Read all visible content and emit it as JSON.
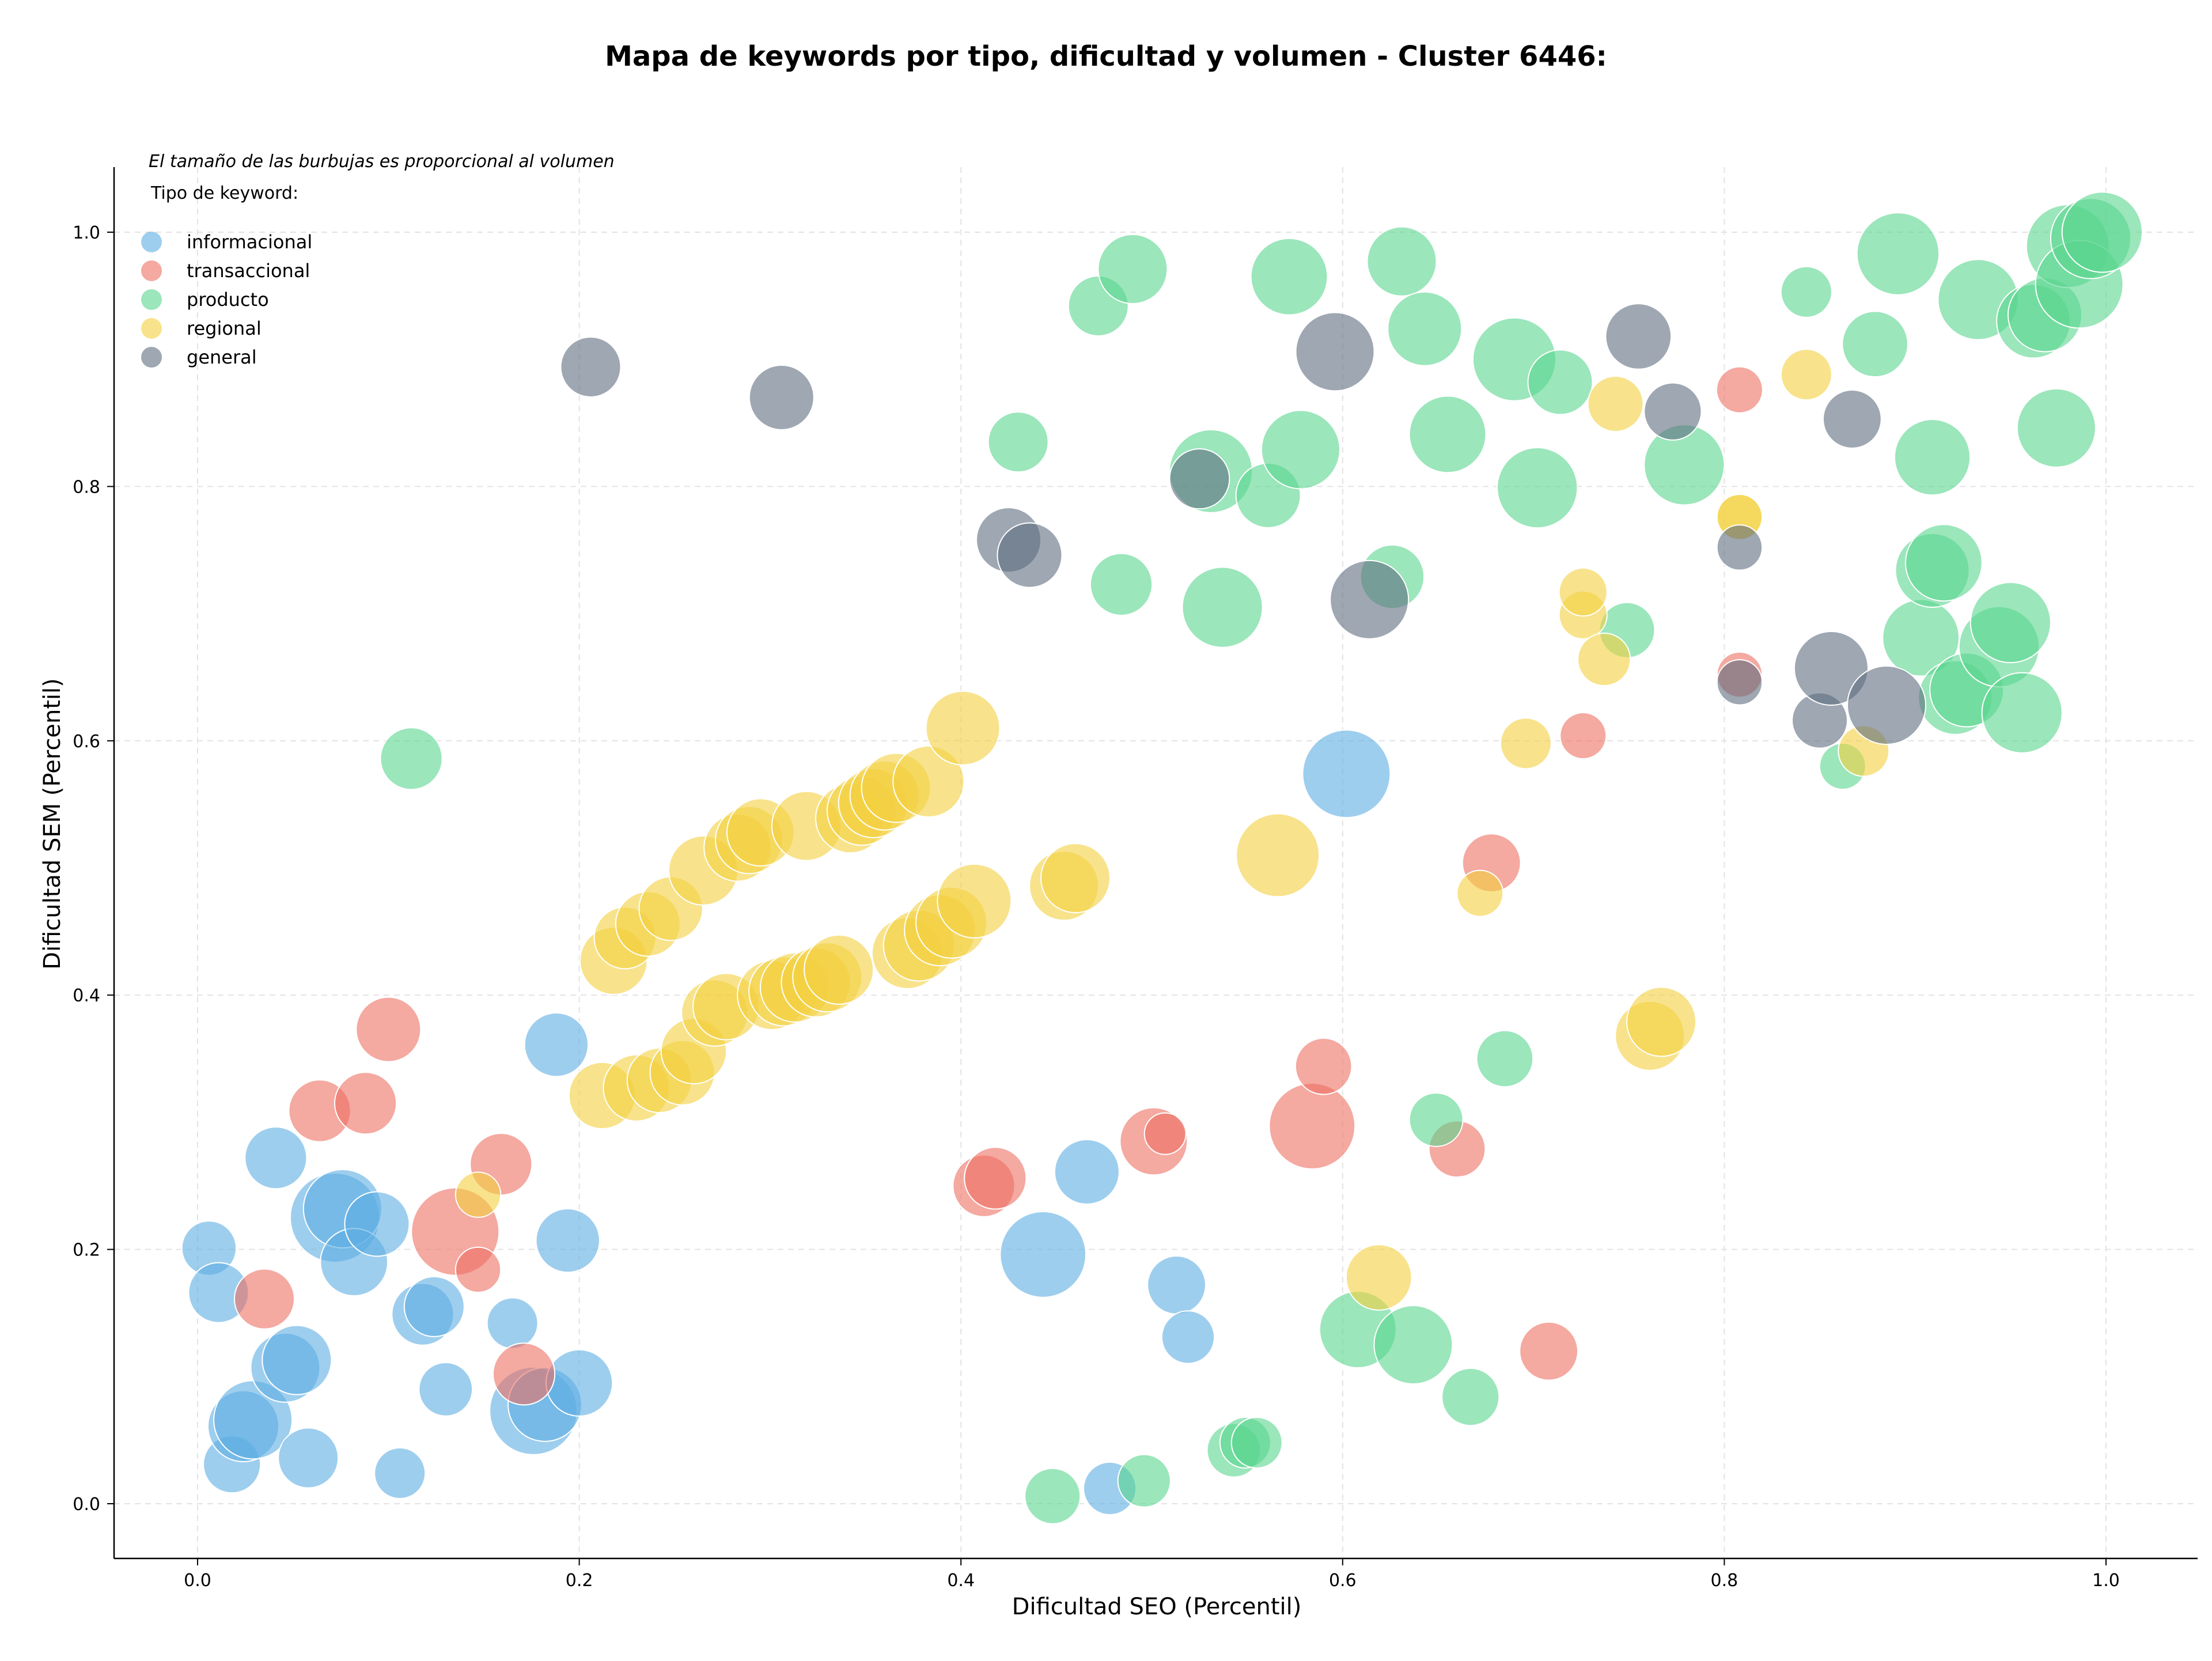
{
  "chart_data": {
    "type": "scatter",
    "title": "Mapa de keywords por tipo, dificultad y volumen - Cluster 6446:",
    "xlabel": "Dificultad SEO (Percentil)",
    "ylabel": "Dificultad SEM (Percentil)",
    "xlim": [
      -0.043,
      1.05
    ],
    "ylim": [
      -0.043,
      1.05
    ],
    "x_ticks": [
      "0.0",
      "0.2",
      "0.4",
      "0.6",
      "0.8",
      "1.0"
    ],
    "y_ticks": [
      "0.0",
      "0.2",
      "0.4",
      "0.6",
      "0.8",
      "1.0"
    ],
    "grid": true,
    "legend_placement": "top-left",
    "note": "El tamaño de las burbujas es proporcional al volumen",
    "legend_title": "Tipo de keyword:",
    "series": [
      {
        "name": "informacional",
        "color": "#5dade2",
        "points": [
          {
            "x": 0.006,
            "y": 0.201,
            "s": 0.34
          },
          {
            "x": 0.011,
            "y": 0.166,
            "s": 0.4
          },
          {
            "x": 0.018,
            "y": 0.031,
            "s": 0.37
          },
          {
            "x": 0.024,
            "y": 0.061,
            "s": 0.52
          },
          {
            "x": 0.029,
            "y": 0.066,
            "s": 0.6
          },
          {
            "x": 0.041,
            "y": 0.272,
            "s": 0.42
          },
          {
            "x": 0.046,
            "y": 0.107,
            "s": 0.5
          },
          {
            "x": 0.052,
            "y": 0.113,
            "s": 0.5
          },
          {
            "x": 0.058,
            "y": 0.036,
            "s": 0.4
          },
          {
            "x": 0.072,
            "y": 0.225,
            "s": 0.72
          },
          {
            "x": 0.076,
            "y": 0.232,
            "s": 0.6
          },
          {
            "x": 0.082,
            "y": 0.19,
            "s": 0.48
          },
          {
            "x": 0.094,
            "y": 0.22,
            "s": 0.45
          },
          {
            "x": 0.106,
            "y": 0.024,
            "s": 0.3
          },
          {
            "x": 0.118,
            "y": 0.149,
            "s": 0.42
          },
          {
            "x": 0.124,
            "y": 0.155,
            "s": 0.4
          },
          {
            "x": 0.13,
            "y": 0.09,
            "s": 0.33
          },
          {
            "x": 0.165,
            "y": 0.142,
            "s": 0.3
          },
          {
            "x": 0.176,
            "y": 0.073,
            "s": 0.7
          },
          {
            "x": 0.182,
            "y": 0.078,
            "s": 0.55
          },
          {
            "x": 0.188,
            "y": 0.361,
            "s": 0.44
          },
          {
            "x": 0.194,
            "y": 0.207,
            "s": 0.44
          },
          {
            "x": 0.2,
            "y": 0.095,
            "s": 0.47
          },
          {
            "x": 0.443,
            "y": 0.196,
            "s": 0.68
          },
          {
            "x": 0.466,
            "y": 0.261,
            "s": 0.45
          },
          {
            "x": 0.478,
            "y": 0.012,
            "s": 0.32
          },
          {
            "x": 0.513,
            "y": 0.172,
            "s": 0.38
          },
          {
            "x": 0.519,
            "y": 0.131,
            "s": 0.32
          },
          {
            "x": 0.602,
            "y": 0.574,
            "s": 0.7
          }
        ]
      },
      {
        "name": "transaccional",
        "color": "#ec7063",
        "points": [
          {
            "x": 0.035,
            "y": 0.161,
            "s": 0.4
          },
          {
            "x": 0.064,
            "y": 0.309,
            "s": 0.42
          },
          {
            "x": 0.088,
            "y": 0.315,
            "s": 0.42
          },
          {
            "x": 0.1,
            "y": 0.373,
            "s": 0.45
          },
          {
            "x": 0.135,
            "y": 0.214,
            "s": 0.7
          },
          {
            "x": 0.147,
            "y": 0.184,
            "s": 0.24
          },
          {
            "x": 0.159,
            "y": 0.267,
            "s": 0.42
          },
          {
            "x": 0.171,
            "y": 0.102,
            "s": 0.42
          },
          {
            "x": 0.412,
            "y": 0.25,
            "s": 0.42
          },
          {
            "x": 0.418,
            "y": 0.256,
            "s": 0.42
          },
          {
            "x": 0.501,
            "y": 0.285,
            "s": 0.48
          },
          {
            "x": 0.507,
            "y": 0.291,
            "s": 0.2
          },
          {
            "x": 0.584,
            "y": 0.297,
            "s": 0.68
          },
          {
            "x": 0.59,
            "y": 0.344,
            "s": 0.36
          },
          {
            "x": 0.66,
            "y": 0.279,
            "s": 0.36
          },
          {
            "x": 0.678,
            "y": 0.504,
            "s": 0.38
          },
          {
            "x": 0.708,
            "y": 0.12,
            "s": 0.38
          },
          {
            "x": 0.726,
            "y": 0.604,
            "s": 0.25
          },
          {
            "x": 0.808,
            "y": 0.652,
            "s": 0.24
          },
          {
            "x": 0.808,
            "y": 0.876,
            "s": 0.25
          }
        ]
      },
      {
        "name": "producto",
        "color": "#58d68d",
        "points": [
          {
            "x": 0.112,
            "y": 0.586,
            "s": 0.42
          },
          {
            "x": 0.43,
            "y": 0.835,
            "s": 0.4
          },
          {
            "x": 0.448,
            "y": 0.006,
            "s": 0.35
          },
          {
            "x": 0.472,
            "y": 0.942,
            "s": 0.4
          },
          {
            "x": 0.484,
            "y": 0.723,
            "s": 0.42
          },
          {
            "x": 0.49,
            "y": 0.971,
            "s": 0.5
          },
          {
            "x": 0.496,
            "y": 0.018,
            "s": 0.32
          },
          {
            "x": 0.531,
            "y": 0.812,
            "s": 0.65
          },
          {
            "x": 0.537,
            "y": 0.705,
            "s": 0.62
          },
          {
            "x": 0.543,
            "y": 0.042,
            "s": 0.33
          },
          {
            "x": 0.549,
            "y": 0.048,
            "s": 0.3
          },
          {
            "x": 0.555,
            "y": 0.048,
            "s": 0.3
          },
          {
            "x": 0.561,
            "y": 0.793,
            "s": 0.45
          },
          {
            "x": 0.572,
            "y": 0.965,
            "s": 0.58
          },
          {
            "x": 0.578,
            "y": 0.829,
            "s": 0.6
          },
          {
            "x": 0.608,
            "y": 0.137,
            "s": 0.58
          },
          {
            "x": 0.626,
            "y": 0.729,
            "s": 0.44
          },
          {
            "x": 0.631,
            "y": 0.977,
            "s": 0.5
          },
          {
            "x": 0.637,
            "y": 0.125,
            "s": 0.6
          },
          {
            "x": 0.643,
            "y": 0.924,
            "s": 0.55
          },
          {
            "x": 0.649,
            "y": 0.302,
            "s": 0.33
          },
          {
            "x": 0.655,
            "y": 0.841,
            "s": 0.58
          },
          {
            "x": 0.667,
            "y": 0.084,
            "s": 0.37
          },
          {
            "x": 0.685,
            "y": 0.35,
            "s": 0.36
          },
          {
            "x": 0.69,
            "y": 0.9,
            "s": 0.65
          },
          {
            "x": 0.702,
            "y": 0.799,
            "s": 0.62
          },
          {
            "x": 0.714,
            "y": 0.882,
            "s": 0.45
          },
          {
            "x": 0.749,
            "y": 0.687,
            "s": 0.35
          },
          {
            "x": 0.779,
            "y": 0.817,
            "s": 0.62
          },
          {
            "x": 0.843,
            "y": 0.953,
            "s": 0.3
          },
          {
            "x": 0.862,
            "y": 0.58,
            "s": 0.25
          },
          {
            "x": 0.879,
            "y": 0.912,
            "s": 0.46
          },
          {
            "x": 0.891,
            "y": 0.983,
            "s": 0.64
          },
          {
            "x": 0.903,
            "y": 0.681,
            "s": 0.58
          },
          {
            "x": 0.909,
            "y": 0.823,
            "s": 0.57
          },
          {
            "x": 0.909,
            "y": 0.734,
            "s": 0.55
          },
          {
            "x": 0.915,
            "y": 0.74,
            "s": 0.58
          },
          {
            "x": 0.921,
            "y": 0.634,
            "s": 0.55
          },
          {
            "x": 0.927,
            "y": 0.64,
            "s": 0.55
          },
          {
            "x": 0.933,
            "y": 0.947,
            "s": 0.62
          },
          {
            "x": 0.944,
            "y": 0.674,
            "s": 0.62
          },
          {
            "x": 0.95,
            "y": 0.693,
            "s": 0.62
          },
          {
            "x": 0.956,
            "y": 0.622,
            "s": 0.62
          },
          {
            "x": 0.962,
            "y": 0.93,
            "s": 0.55
          },
          {
            "x": 0.968,
            "y": 0.935,
            "s": 0.55
          },
          {
            "x": 0.974,
            "y": 0.846,
            "s": 0.6
          },
          {
            "x": 0.98,
            "y": 0.989,
            "s": 0.65
          },
          {
            "x": 0.986,
            "y": 0.959,
            "s": 0.7
          },
          {
            "x": 0.992,
            "y": 0.995,
            "s": 0.62
          },
          {
            "x": 0.998,
            "y": 1.0,
            "s": 0.62
          }
        ]
      },
      {
        "name": "regional",
        "color": "#f4d03f",
        "points": [
          {
            "x": 0.147,
            "y": 0.243,
            "s": 0.24
          },
          {
            "x": 0.212,
            "y": 0.321,
            "s": 0.47
          },
          {
            "x": 0.218,
            "y": 0.427,
            "s": 0.48
          },
          {
            "x": 0.224,
            "y": 0.445,
            "s": 0.42
          },
          {
            "x": 0.23,
            "y": 0.327,
            "s": 0.47
          },
          {
            "x": 0.236,
            "y": 0.456,
            "s": 0.45
          },
          {
            "x": 0.242,
            "y": 0.333,
            "s": 0.45
          },
          {
            "x": 0.248,
            "y": 0.468,
            "s": 0.44
          },
          {
            "x": 0.254,
            "y": 0.339,
            "s": 0.45
          },
          {
            "x": 0.26,
            "y": 0.356,
            "s": 0.46
          },
          {
            "x": 0.265,
            "y": 0.498,
            "s": 0.5
          },
          {
            "x": 0.271,
            "y": 0.386,
            "s": 0.47
          },
          {
            "x": 0.277,
            "y": 0.391,
            "s": 0.47
          },
          {
            "x": 0.283,
            "y": 0.516,
            "s": 0.48
          },
          {
            "x": 0.289,
            "y": 0.522,
            "s": 0.48
          },
          {
            "x": 0.295,
            "y": 0.528,
            "s": 0.48
          },
          {
            "x": 0.301,
            "y": 0.4,
            "s": 0.5
          },
          {
            "x": 0.307,
            "y": 0.403,
            "s": 0.5
          },
          {
            "x": 0.313,
            "y": 0.406,
            "s": 0.5
          },
          {
            "x": 0.319,
            "y": 0.533,
            "s": 0.5
          },
          {
            "x": 0.324,
            "y": 0.41,
            "s": 0.5
          },
          {
            "x": 0.33,
            "y": 0.414,
            "s": 0.5
          },
          {
            "x": 0.336,
            "y": 0.42,
            "s": 0.5
          },
          {
            "x": 0.342,
            "y": 0.539,
            "s": 0.5
          },
          {
            "x": 0.348,
            "y": 0.545,
            "s": 0.5
          },
          {
            "x": 0.354,
            "y": 0.551,
            "s": 0.5
          },
          {
            "x": 0.36,
            "y": 0.557,
            "s": 0.5
          },
          {
            "x": 0.366,
            "y": 0.563,
            "s": 0.5
          },
          {
            "x": 0.372,
            "y": 0.433,
            "s": 0.52
          },
          {
            "x": 0.378,
            "y": 0.439,
            "s": 0.52
          },
          {
            "x": 0.383,
            "y": 0.568,
            "s": 0.52
          },
          {
            "x": 0.389,
            "y": 0.451,
            "s": 0.52
          },
          {
            "x": 0.395,
            "y": 0.457,
            "s": 0.52
          },
          {
            "x": 0.401,
            "y": 0.61,
            "s": 0.55
          },
          {
            "x": 0.407,
            "y": 0.474,
            "s": 0.55
          },
          {
            "x": 0.454,
            "y": 0.486,
            "s": 0.5
          },
          {
            "x": 0.46,
            "y": 0.492,
            "s": 0.5
          },
          {
            "x": 0.566,
            "y": 0.51,
            "s": 0.65
          },
          {
            "x": 0.619,
            "y": 0.178,
            "s": 0.46
          },
          {
            "x": 0.672,
            "y": 0.48,
            "s": 0.25
          },
          {
            "x": 0.696,
            "y": 0.598,
            "s": 0.3
          },
          {
            "x": 0.726,
            "y": 0.699,
            "s": 0.27
          },
          {
            "x": 0.726,
            "y": 0.717,
            "s": 0.27
          },
          {
            "x": 0.737,
            "y": 0.664,
            "s": 0.32
          },
          {
            "x": 0.743,
            "y": 0.865,
            "s": 0.35
          },
          {
            "x": 0.761,
            "y": 0.368,
            "s": 0.5
          },
          {
            "x": 0.767,
            "y": 0.379,
            "s": 0.5
          },
          {
            "x": 0.808,
            "y": 0.776,
            "s": 0.24
          },
          {
            "x": 0.808,
            "y": 0.776,
            "s": 0.24
          },
          {
            "x": 0.843,
            "y": 0.888,
            "s": 0.3
          },
          {
            "x": 0.873,
            "y": 0.592,
            "s": 0.3
          }
        ]
      },
      {
        "name": "general",
        "color": "#5d6d7e",
        "points": [
          {
            "x": 0.206,
            "y": 0.894,
            "s": 0.4
          },
          {
            "x": 0.306,
            "y": 0.87,
            "s": 0.45
          },
          {
            "x": 0.425,
            "y": 0.758,
            "s": 0.45
          },
          {
            "x": 0.436,
            "y": 0.746,
            "s": 0.45
          },
          {
            "x": 0.525,
            "y": 0.806,
            "s": 0.4
          },
          {
            "x": 0.596,
            "y": 0.906,
            "s": 0.6
          },
          {
            "x": 0.614,
            "y": 0.711,
            "s": 0.6
          },
          {
            "x": 0.755,
            "y": 0.918,
            "s": 0.46
          },
          {
            "x": 0.773,
            "y": 0.859,
            "s": 0.37
          },
          {
            "x": 0.808,
            "y": 0.752,
            "s": 0.24
          },
          {
            "x": 0.808,
            "y": 0.646,
            "s": 0.24
          },
          {
            "x": 0.85,
            "y": 0.616,
            "s": 0.35
          },
          {
            "x": 0.856,
            "y": 0.657,
            "s": 0.55
          },
          {
            "x": 0.867,
            "y": 0.853,
            "s": 0.38
          },
          {
            "x": 0.885,
            "y": 0.628,
            "s": 0.6
          }
        ]
      }
    ]
  }
}
